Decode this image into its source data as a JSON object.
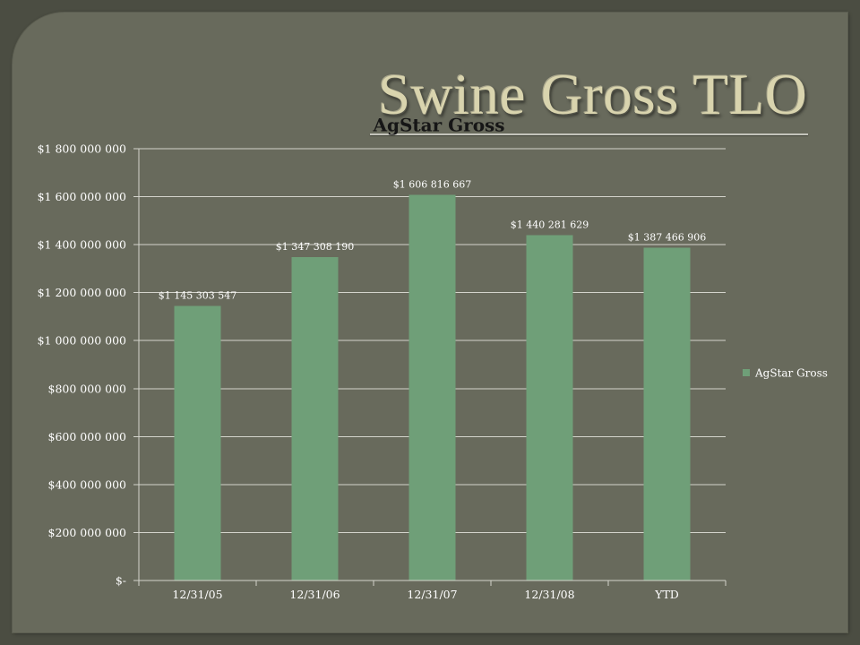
{
  "slide": {
    "title": "Swine Gross TLO"
  },
  "colors": {
    "background": "#4b4d42",
    "panel": "#686a5c",
    "title": "#d9d4ae",
    "rule": "#c3c3ba",
    "gridline": "#d4d4cc",
    "text": "#ffffff",
    "chart_title": "#161616"
  },
  "chart_data": {
    "type": "bar",
    "title": "AgStar Gross",
    "categories": [
      "12/31/05",
      "12/31/06",
      "12/31/07",
      "12/31/08",
      "YTD"
    ],
    "series": [
      {
        "name": "AgStar Gross",
        "values": [
          1145303547,
          1347308190,
          1606816667,
          1440281629,
          1387466906
        ],
        "data_labels": [
          "$1 145 303 547",
          "$1 347 308 190",
          "$1 606 816 667",
          "$1 440 281 629",
          "$1 387 466 906"
        ],
        "color": "#6f9f78"
      }
    ],
    "ylim": [
      0,
      1800000000
    ],
    "y_ticks": [
      0,
      200000000,
      400000000,
      600000000,
      800000000,
      1000000000,
      1200000000,
      1400000000,
      1600000000,
      1800000000
    ],
    "y_tick_labels": [
      "$-",
      "$200 000 000",
      "$400 000 000",
      "$600 000 000",
      "$800 000 000",
      "$1 000 000 000",
      "$1 200 000 000",
      "$1 400 000 000",
      "$1 600 000 000",
      "$1 800 000 000"
    ],
    "grid": true,
    "legend": "right"
  }
}
